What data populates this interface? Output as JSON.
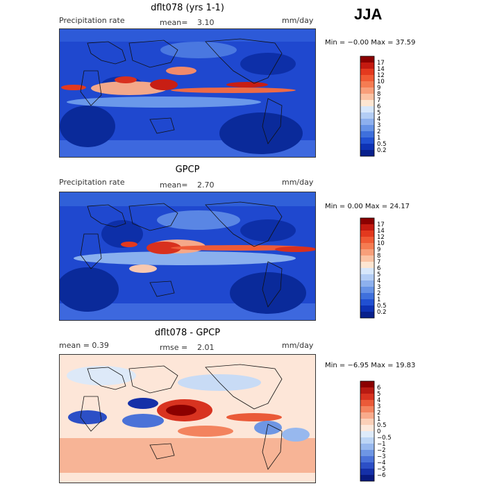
{
  "season_label": "JJA",
  "panels": [
    {
      "title": "dflt078 (yrs 1-1)",
      "left_label": "Precipitation rate",
      "center_label": "mean=",
      "center_value": "3.10",
      "right_label": "mm/day",
      "minmax": "Min =  −0.00  Max =  37.59",
      "colorbar": {
        "labels": [
          "17",
          "14",
          "12",
          "10",
          "9",
          "8",
          "7",
          "6",
          "5",
          "4",
          "3",
          "2",
          "1",
          "0.5",
          "0.2"
        ],
        "colors": [
          "#8b0000",
          "#c41a10",
          "#e3391e",
          "#f05a34",
          "#f57c52",
          "#f89f7a",
          "#fbc3a4",
          "#fde6d2",
          "#d7e7fb",
          "#b3cdf5",
          "#8db0ee",
          "#6692e6",
          "#3f70dc",
          "#2150d2",
          "#0e32b4",
          "#08208c"
        ]
      }
    },
    {
      "title": "GPCP",
      "left_label": "Precipitation rate",
      "center_label": "mean=",
      "center_value": "2.70",
      "right_label": "mm/day",
      "minmax": "Min =   0.00  Max =  24.17",
      "colorbar": {
        "labels": [
          "17",
          "14",
          "12",
          "10",
          "9",
          "8",
          "7",
          "6",
          "5",
          "4",
          "3",
          "2",
          "1",
          "0.5",
          "0.2"
        ],
        "colors": [
          "#8b0000",
          "#c41a10",
          "#e3391e",
          "#f05a34",
          "#f57c52",
          "#f89f7a",
          "#fbc3a4",
          "#fde6d2",
          "#d7e7fb",
          "#b3cdf5",
          "#8db0ee",
          "#6692e6",
          "#3f70dc",
          "#2150d2",
          "#0e32b4",
          "#08208c"
        ]
      }
    },
    {
      "title": "dflt078 - GPCP",
      "left_label": "mean =    0.39",
      "center_label": "rmse =",
      "center_value": "2.01",
      "right_label": "mm/day",
      "minmax": "Min =  −6.95  Max =  19.83",
      "colorbar": {
        "labels": [
          "6",
          "5",
          "4",
          "3",
          "2",
          "1",
          "0.5",
          "0",
          "−0.5",
          "−1",
          "−2",
          "−3",
          "−4",
          "−5",
          "−6"
        ],
        "colors": [
          "#8b0000",
          "#b81a12",
          "#d83320",
          "#ea5a38",
          "#f3835e",
          "#f8ab8c",
          "#fbd0b8",
          "#fde9dc",
          "#deebfa",
          "#bcd5f5",
          "#97b8ee",
          "#6e96e4",
          "#4a72d8",
          "#2c4fc6",
          "#1530a8",
          "#081a80"
        ]
      }
    }
  ],
  "chart_data": {
    "type": "heatmap",
    "season": "JJA",
    "units": "mm/day",
    "panels": [
      {
        "name": "dflt078 (yrs 1-1)",
        "variable": "Precipitation rate",
        "mean": 3.1,
        "min": -0.0,
        "max": 37.59,
        "levels": [
          0.2,
          0.5,
          1,
          2,
          3,
          4,
          5,
          6,
          7,
          8,
          9,
          10,
          12,
          14,
          17
        ]
      },
      {
        "name": "GPCP",
        "variable": "Precipitation rate",
        "mean": 2.7,
        "min": 0.0,
        "max": 24.17,
        "levels": [
          0.2,
          0.5,
          1,
          2,
          3,
          4,
          5,
          6,
          7,
          8,
          9,
          10,
          12,
          14,
          17
        ]
      },
      {
        "name": "dflt078 - GPCP",
        "mean": 0.39,
        "rmse": 2.01,
        "min": -6.95,
        "max": 19.83,
        "levels": [
          -6,
          -5,
          -4,
          -3,
          -2,
          -1,
          -0.5,
          0,
          0.5,
          1,
          2,
          3,
          4,
          5,
          6
        ]
      }
    ]
  }
}
